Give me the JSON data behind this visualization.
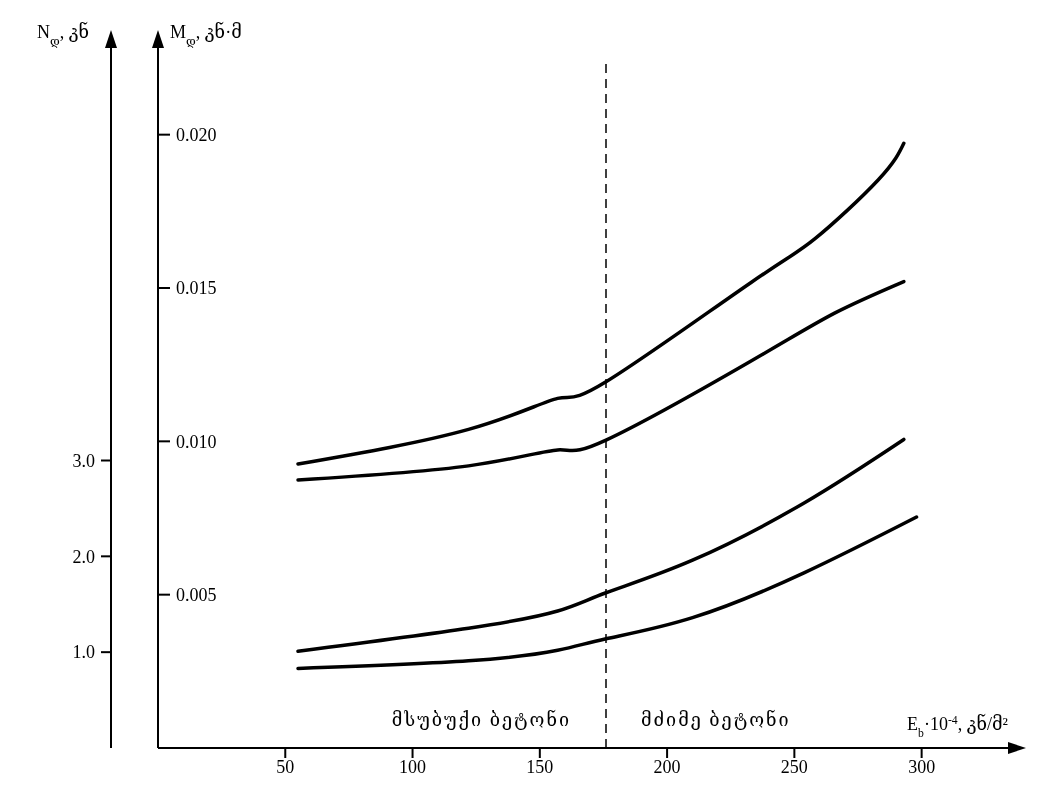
{
  "chart_data": {
    "type": "line",
    "xlabel": "E$_{b}$·10$^{-4}$, კნ/მ²",
    "ylabel": "M$_{დ}$, კნ·მ",
    "y2label": "N$_{დ}$, კნ",
    "xlim": [
      0,
      330
    ],
    "xticks": [
      50,
      100,
      150,
      200,
      250,
      300
    ],
    "ylim": [
      0,
      0.0225
    ],
    "yticks": [
      {
        "value": 0.005,
        "label": "0.005"
      },
      {
        "value": 0.01,
        "label": "0.010"
      },
      {
        "value": 0.015,
        "label": "0.015"
      },
      {
        "value": 0.02,
        "label": "0.020"
      }
    ],
    "y2lim": [
      0,
      7.2
    ],
    "y2ticks": [
      {
        "value": 1,
        "label": "1.0"
      },
      {
        "value": 2,
        "label": "2.0"
      },
      {
        "value": 3,
        "label": "3.0"
      }
    ],
    "marker": "none",
    "ref_lines": [
      {
        "axis": "x",
        "value": 176,
        "color": "#000000",
        "line_style": "dashed"
      }
    ],
    "annotations": [
      "მსუბუქი ბეტონი",
      "მძიმე ბეტონი"
    ],
    "series": [
      {
        "color": "#000000",
        "axis": "y",
        "x": [
          55,
          122,
          157,
          176,
          233,
          258,
          283,
          293
        ],
        "values": [
          0.00926,
          0.01039,
          0.0114,
          0.01194,
          0.01518,
          0.0166,
          0.01853,
          0.01972
        ]
      },
      {
        "color": "#000000",
        "axis": "y",
        "x": [
          55,
          122,
          157,
          176,
          233,
          266,
          293
        ],
        "values": [
          0.00874,
          0.0092,
          0.00972,
          0.01004,
          0.01262,
          0.01419,
          0.01521
        ]
      },
      {
        "color": "#000000",
        "axis": "y2",
        "x": [
          55,
          122,
          157,
          176,
          210,
          254,
          293
        ],
        "values": [
          1.01,
          1.25,
          1.43,
          1.62,
          1.96,
          2.56,
          3.22
        ]
      },
      {
        "color": "#000000",
        "axis": "y2",
        "x": [
          55,
          122,
          157,
          176,
          210,
          254,
          298
        ],
        "values": [
          0.83,
          0.91,
          1.02,
          1.14,
          1.36,
          1.83,
          2.41
        ]
      }
    ]
  }
}
